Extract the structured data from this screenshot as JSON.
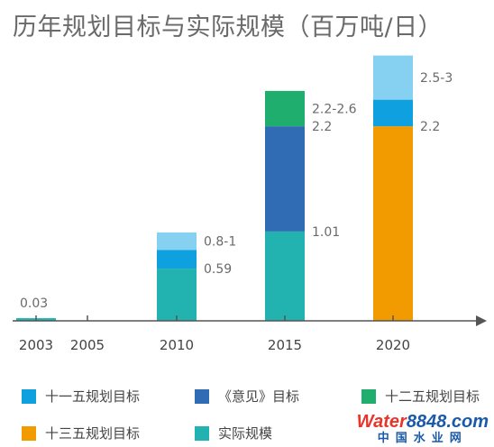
{
  "title": "历年规划目标与实际规模（百万吨/日）",
  "colors": {
    "shiyiwu": "#0fa0e0",
    "yijian": "#2f6cb4",
    "shierwu": "#1fae6e",
    "shisanwu": "#f29b00",
    "actual": "#22b2b0",
    "upper_range": "#86d0f2"
  },
  "chart_data": {
    "type": "bar",
    "title": "历年规划目标与实际规模（百万吨/日）",
    "xlabel": "",
    "ylabel": "",
    "ylim": [
      0,
      3.2
    ],
    "grid": false,
    "legend_position": "bottom",
    "categories": [
      "2003",
      "2005",
      "2010",
      "2015",
      "2020"
    ],
    "series": [
      {
        "name": "实际规模",
        "color": "#22b2b0",
        "values": [
          0.03,
          0,
          0.59,
          1.01,
          null
        ]
      },
      {
        "name": "十一五规划目标",
        "color": "#0fa0e0",
        "values": [
          null,
          null,
          0.8,
          null,
          null
        ]
      },
      {
        "name": "《意见》目标",
        "color": "#2f6cb4",
        "values": [
          null,
          null,
          null,
          2.2,
          null
        ]
      },
      {
        "name": "十二五规划目标",
        "color": "#1fae6e",
        "values": [
          null,
          null,
          null,
          2.6,
          null
        ]
      },
      {
        "name": "十三五规划目标",
        "color": "#f29b00",
        "values": [
          null,
          null,
          null,
          null,
          2.2
        ]
      }
    ],
    "ranges": [
      {
        "category": "2010",
        "from": 0.8,
        "to": 1.0,
        "color": "#86d0f2"
      },
      {
        "category": "2020",
        "from": 2.5,
        "to": 3.0,
        "color": "#86d0f2"
      },
      {
        "category": "2020",
        "from": 2.2,
        "to": 2.5,
        "color": "#0fa0e0"
      }
    ],
    "data_labels": [
      {
        "category": "2003",
        "value": 0.03,
        "text": "0.03"
      },
      {
        "category": "2010",
        "value": 0.59,
        "text": "0.59"
      },
      {
        "category": "2010",
        "value": 0.9,
        "text": "0.8-1"
      },
      {
        "category": "2015",
        "value": 1.01,
        "text": "1.01"
      },
      {
        "category": "2015",
        "value": 2.2,
        "text": "2.2"
      },
      {
        "category": "2015",
        "value": 2.4,
        "text": "2.2-2.6"
      },
      {
        "category": "2020",
        "value": 2.2,
        "text": "2.2"
      },
      {
        "category": "2020",
        "value": 2.75,
        "text": "2.5-3"
      }
    ]
  },
  "legend": [
    {
      "label": "十一五规划目标",
      "color": "#0fa0e0"
    },
    {
      "label": "《意见》目标",
      "color": "#2f6cb4"
    },
    {
      "label": "十二五规划目标",
      "color": "#1fae6e"
    },
    {
      "label": "十三五规划目标",
      "color": "#f29b00"
    },
    {
      "label": "实际规模",
      "color": "#22b2b0"
    }
  ],
  "watermark": {
    "brand_a": "Water",
    "brand_b": "8848",
    "brand_c": ".com",
    "subtitle": "中国水业网"
  }
}
